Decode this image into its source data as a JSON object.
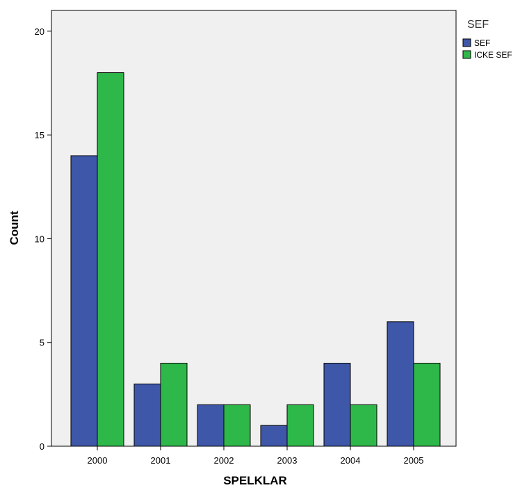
{
  "chart_data": {
    "type": "bar",
    "categories": [
      "2000",
      "2001",
      "2002",
      "2003",
      "2004",
      "2005"
    ],
    "series": [
      {
        "name": "SEF",
        "values": [
          14,
          3,
          2,
          1,
          4,
          6
        ],
        "color": "#3f57a8"
      },
      {
        "name": "ICKE SEF",
        "values": [
          18,
          4,
          2,
          2,
          2,
          4
        ],
        "color": "#2fb84a"
      }
    ],
    "title": "",
    "xlabel": "SPELKLAR",
    "ylabel": "Count",
    "ylim": [
      0,
      21
    ],
    "yticks": [
      0,
      5,
      10,
      15,
      20
    ],
    "legend_title": "SEF",
    "legend_position": "top-right",
    "plot_background": "#f0f0f0",
    "grid": false
  }
}
